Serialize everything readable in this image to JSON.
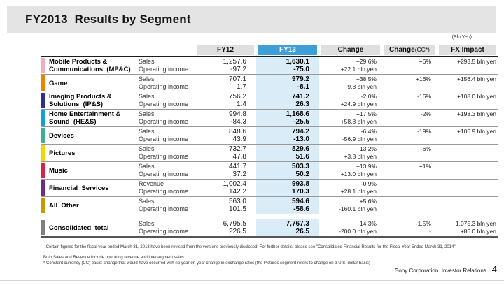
{
  "slide": {
    "title": "FY2013  Results by Segment",
    "unit_note": "(Bln Yen)",
    "footer": {
      "credit": "Sony Corporation  Investor Relations",
      "page": "4"
    }
  },
  "colors": {
    "fy13_header": "#3D9FD6",
    "fy13_cell": "#D9ECF8"
  },
  "table": {
    "columns": {
      "fy12": "FY12",
      "fy13": "FY13",
      "change": "Change",
      "change_cc_main": "Change",
      "change_cc_sub": "(CC*)",
      "fx": "FX Impact"
    },
    "rows": [
      {
        "color": "#F2AEBB",
        "name": "Mobile Products &\nCommunications  (MP&C)",
        "labels": [
          "Sales",
          "Operating income"
        ],
        "fy12": [
          "1,257.6",
          "-97.2"
        ],
        "fy13": [
          "1,630.1",
          "-75.0"
        ],
        "change": [
          "+29.6%",
          "+22.1 bln yen"
        ],
        "change_cc": [
          "+6%",
          ""
        ],
        "fx": [
          "+293.5 bln yen",
          ""
        ]
      },
      {
        "color": "#EF8200",
        "name": "Game",
        "labels": [
          "Sales",
          "Operating income"
        ],
        "fy12": [
          "707.1",
          "1.7"
        ],
        "fy13": [
          "979.2",
          "-8.1"
        ],
        "change": [
          "+38.5%",
          "-9.8 bln yen"
        ],
        "change_cc": [
          "+16%",
          ""
        ],
        "fx": [
          "+156.4 bln yen",
          ""
        ]
      },
      {
        "color": "#2E3192",
        "name": "Imaging Products &\nSolutions  (IP&S)",
        "labels": [
          "Sales",
          "Operating income"
        ],
        "fy12": [
          "756.2",
          "1.4"
        ],
        "fy13": [
          "741.2",
          "26.3"
        ],
        "change": [
          "-2.0%",
          "+24.9 bln yen"
        ],
        "change_cc": [
          "-16%",
          ""
        ],
        "fx": [
          "+108.0 bln yen",
          ""
        ]
      },
      {
        "color": "#149FDA",
        "name": "Home Entertainment &\nSound  (HE&S)",
        "labels": [
          "Sales",
          "Operating income"
        ],
        "fy12": [
          "994.8",
          "-84.3"
        ],
        "fy13": [
          "1,168.6",
          "-25.5"
        ],
        "change": [
          "+17.5%",
          "+58.8 bln yen"
        ],
        "change_cc": [
          "-2%",
          ""
        ],
        "fx": [
          "+198.3 bln yen",
          ""
        ]
      },
      {
        "color": "#3AB28F",
        "name": "Devices",
        "labels": [
          "Sales",
          "Operating income"
        ],
        "fy12": [
          "848.6",
          "43.9"
        ],
        "fy13": [
          "794.2",
          "-13.0"
        ],
        "change": [
          "-6.4%",
          "-56.9 bln yen"
        ],
        "change_cc": [
          "-19%",
          ""
        ],
        "fx": [
          "+106.9 bln yen",
          ""
        ]
      },
      {
        "color": "#F2D600",
        "name": "Pictures",
        "labels": [
          "Sales",
          "Operating income"
        ],
        "fy12": [
          "732.7",
          "47.8"
        ],
        "fy13": [
          "829.6",
          "51.6"
        ],
        "change": [
          "+13.2%",
          "+3.8 bln yen"
        ],
        "change_cc": [
          "-6%",
          ""
        ],
        "fx": [
          "",
          ""
        ]
      },
      {
        "color": "#D5234B",
        "name": "Music",
        "labels": [
          "Sales",
          "Operating income"
        ],
        "fy12": [
          "441.7",
          "37.2"
        ],
        "fy13": [
          "503.3",
          "50.2"
        ],
        "change": [
          "+13.9%",
          "+13.0 bln yen"
        ],
        "change_cc": [
          "+1%",
          ""
        ],
        "fx": [
          "",
          ""
        ]
      },
      {
        "color": "#6C2D83",
        "name": "Financial  Services",
        "labels": [
          "Revenue",
          "Operating income"
        ],
        "fy12": [
          "1,002.4",
          "142.2"
        ],
        "fy13": [
          "993.8",
          "170.3"
        ],
        "change": [
          "-0.9%",
          "+28.1 bln yen"
        ],
        "change_cc": [
          "",
          ""
        ],
        "fx": [
          "",
          ""
        ]
      },
      {
        "color": "#C79B00",
        "name": "All  Other",
        "labels": [
          "Sales",
          "Operating income"
        ],
        "fy12": [
          "563.0",
          "101.5"
        ],
        "fy13": [
          "594.6",
          "-58.6"
        ],
        "change": [
          "+5.6%",
          "-160.1 bln yen"
        ],
        "change_cc": [
          "",
          ""
        ],
        "fx": [
          "",
          ""
        ]
      }
    ],
    "total_row": {
      "color": "#7F7F7F",
      "name": "Consolidated  total",
      "labels": [
        "Sales",
        "Operating income"
      ],
      "fy12": [
        "6,795.5",
        "226.5"
      ],
      "fy13": [
        "7,767.3",
        "26.5"
      ],
      "change": [
        "+14.3%",
        "-200.0 bln yen"
      ],
      "change_cc": [
        "-1.5%",
        "-"
      ],
      "fx": [
        "+1,075.3 bln yen",
        "+86.0 bln yen"
      ]
    }
  },
  "footnotes": {
    "note1": "·  Certain figures for the fiscal year ended March 31, 2013 have been revised from the versions previously disclosed.  For further details, please see \"Consolidated Financial Results for the Fiscal Year Ended March 31, 2014\".",
    "note2": "Both Sales and Revenue include operating revenue and intersegment sales",
    "note3": "* Constant currency (CC) basis: change that would have occurred with no year-on-year change in exchange rates (the Pictures segment refers to change on a U.S. dollar basis)"
  }
}
